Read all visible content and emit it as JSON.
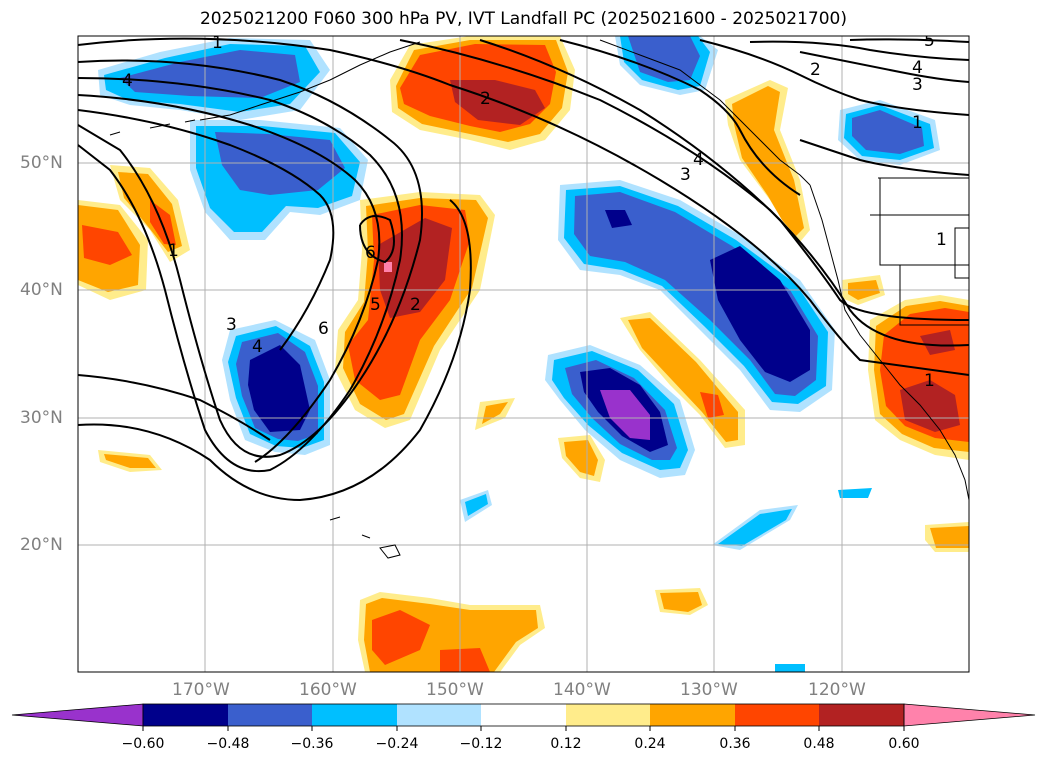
{
  "title": "2025021200 F060 300 hPa PV, IVT Landfall PC (2025021600 - 2025021700)",
  "map": {
    "lat_labels": [
      "50°N",
      "40°N",
      "30°N",
      "20°N"
    ],
    "lon_labels": [
      "170°W",
      "160°W",
      "150°W",
      "140°W",
      "130°W",
      "120°W"
    ],
    "contour_labels": [
      "1",
      "4",
      "2",
      "5",
      "4",
      "3",
      "1",
      "2",
      "3",
      "4",
      "1",
      "6",
      "5",
      "2",
      "6",
      "3",
      "4",
      "1",
      "1"
    ]
  },
  "colorbar": {
    "ticks": [
      "−0.60",
      "−0.48",
      "−0.36",
      "−0.24",
      "−0.12",
      "0.12",
      "0.24",
      "0.36",
      "0.48",
      "0.60"
    ],
    "colors": [
      "#9932CC",
      "#00008B",
      "#3A5FCD",
      "#00BFFF",
      "#B0E2FF",
      "#FFFFFF",
      "#FFEC8B",
      "#FFA500",
      "#FF4500",
      "#B22222",
      "#FF82AB"
    ]
  },
  "colors": {
    "pos1": "#FFEC8B",
    "pos2": "#FFA500",
    "pos3": "#FF4500",
    "pos4": "#B22222",
    "pos5": "#FF82AB",
    "neg1": "#B0E2FF",
    "neg2": "#00BFFF",
    "neg3": "#3A5FCD",
    "neg4": "#00008B",
    "neg5": "#9932CC"
  }
}
